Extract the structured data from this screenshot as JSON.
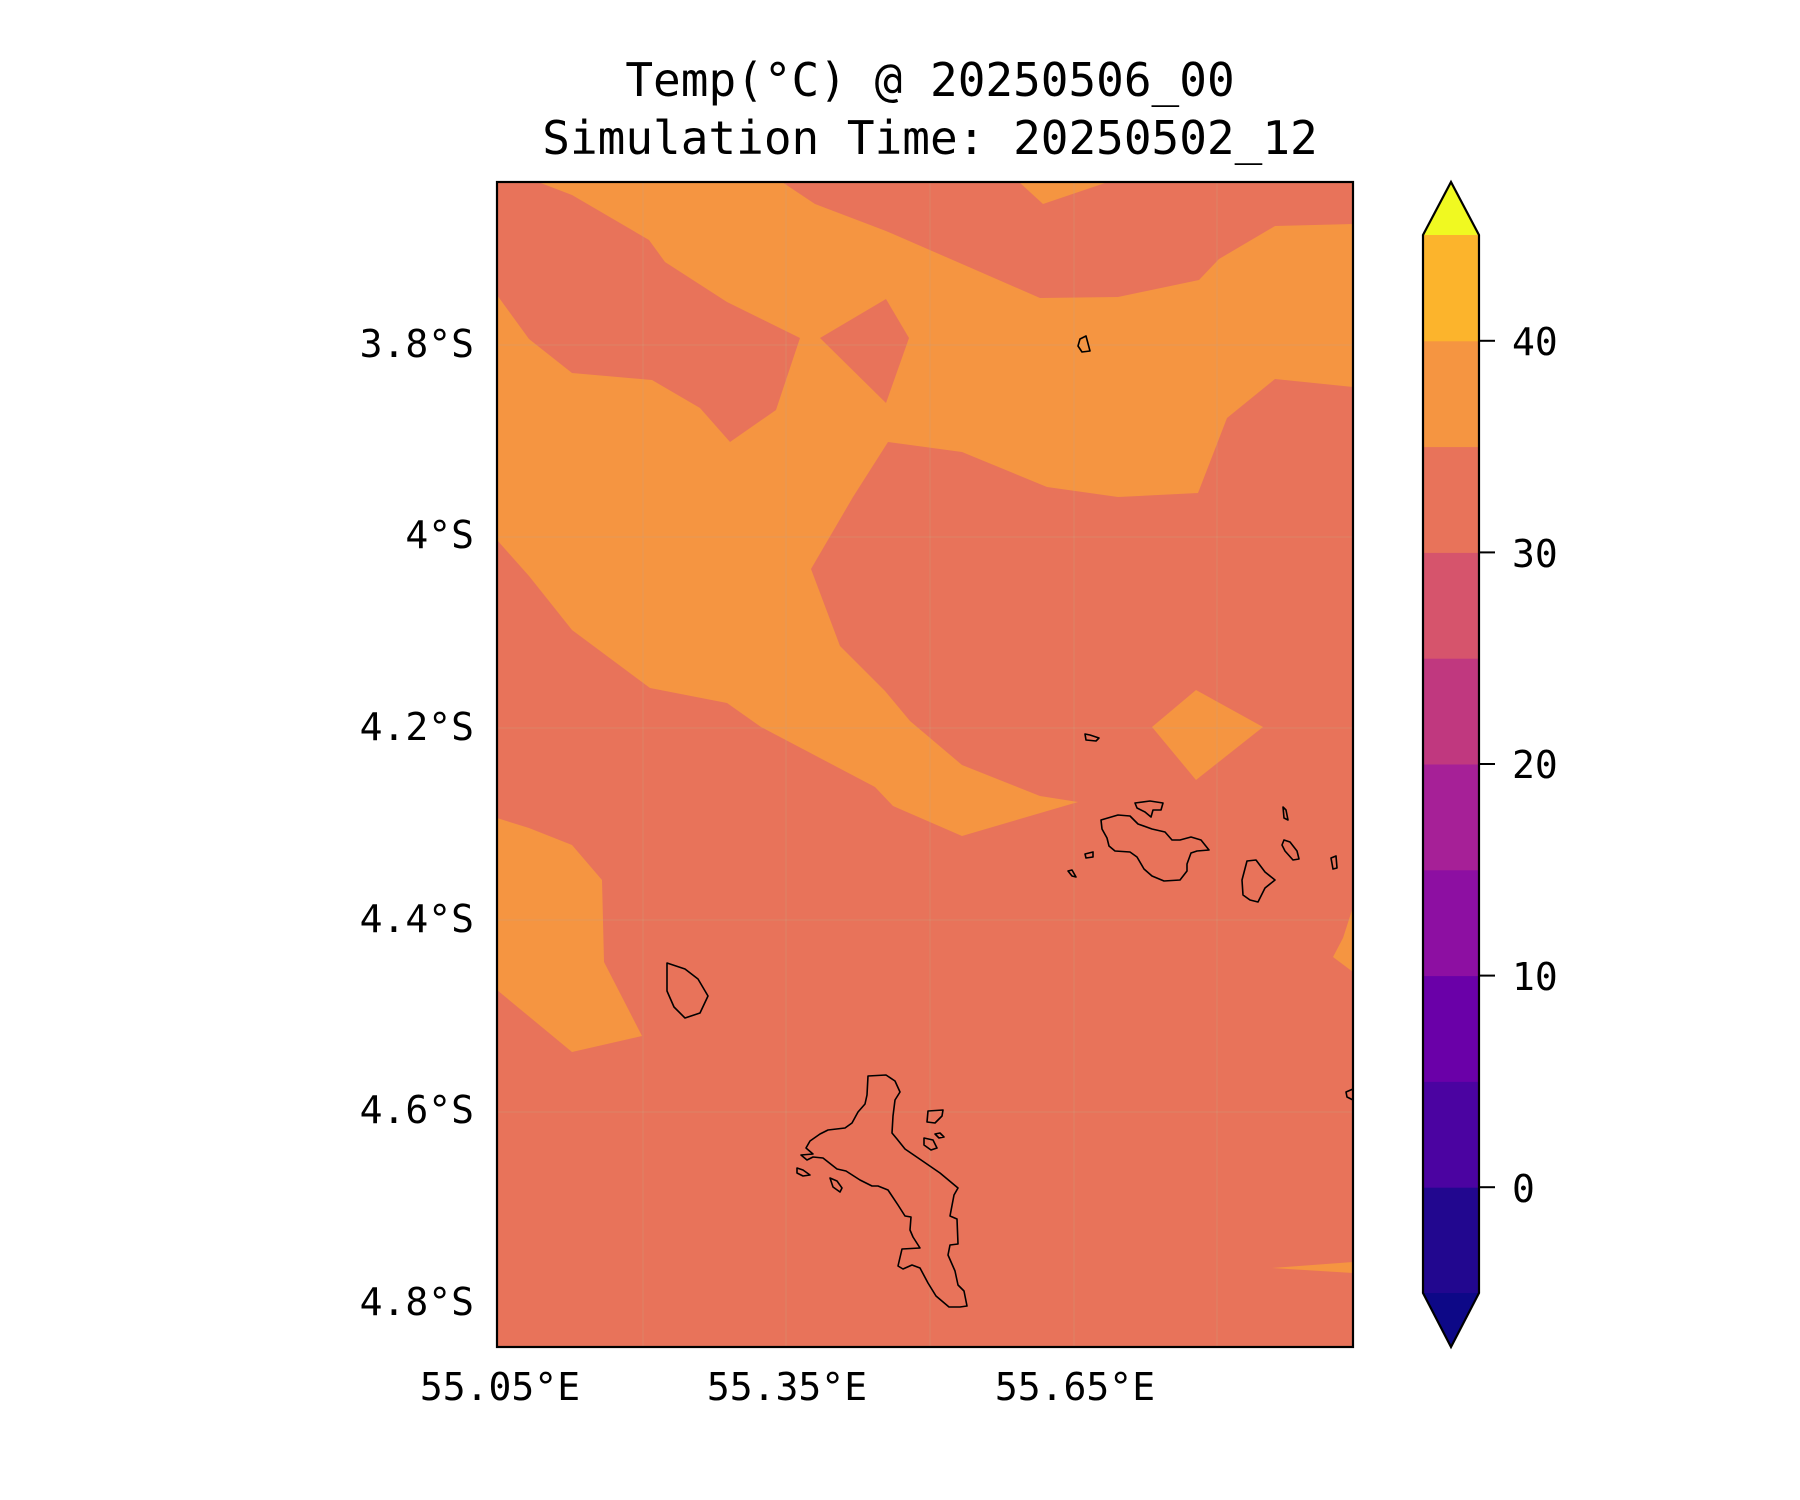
{
  "title": {
    "line1": "Temp(°C) @ 20250506_00",
    "line2": "Simulation Time: 20250502_12"
  },
  "map": {
    "y_ticks": [
      "3.8°S",
      "4°S",
      "4.2°S",
      "4.4°S",
      "4.6°S",
      "4.8°S"
    ],
    "x_ticks": [
      "55.05°E",
      "55.35°E",
      "55.65°E"
    ],
    "colors": {
      "band_25_30": "#e8735a",
      "band_30_35": "#f59541",
      "band_35_40": "#fcb42c",
      "coastline": "#000000",
      "gridline": "#c8a080"
    }
  },
  "colorbar": {
    "ticks": [
      "0",
      "10",
      "20",
      "30",
      "40"
    ],
    "levels": [
      -5,
      0,
      5,
      10,
      15,
      20,
      25,
      30,
      35,
      40,
      45
    ],
    "band_colors": [
      "#22078f",
      "#4b03a1",
      "#6a00a8",
      "#8d0fa2",
      "#a62097",
      "#c0387f",
      "#d6546c",
      "#e8735a",
      "#f59541",
      "#fcb42c",
      "#f2e326"
    ],
    "under_color": "#0d0887",
    "over_color": "#f0f921"
  }
}
